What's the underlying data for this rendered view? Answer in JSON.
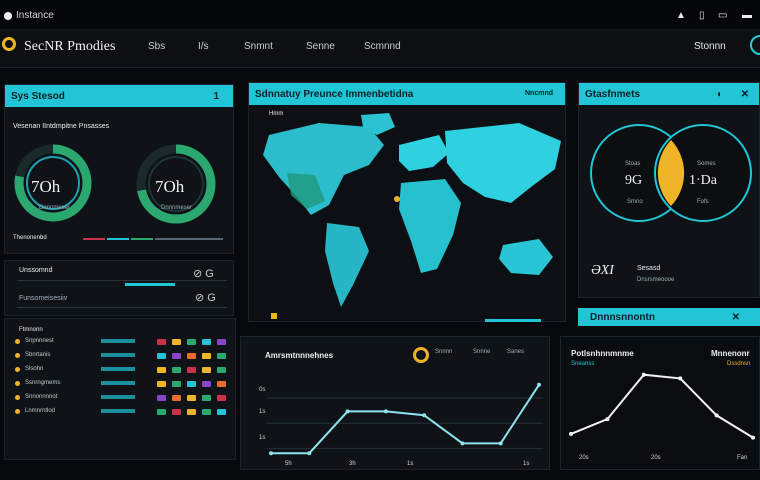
{
  "os": {
    "title": "Instance",
    "icons": [
      "person-icon",
      "window-icon",
      "monitor-icon",
      "close-icon"
    ]
  },
  "header": {
    "brand": "SecNR Pmodies",
    "nav": [
      "Sbs",
      "I/s",
      "Snmnt",
      "Senne",
      "Scmnnd"
    ],
    "user": "Stonnn"
  },
  "status_panel": {
    "title": "Sys Stesod",
    "marker": "1",
    "subtitle": "Vesenan IIntdmpitne Pnsasses",
    "gauge_left": {
      "value": "7Oh",
      "caption": "Dnnnmeser",
      "level": 0.78
    },
    "gauge_right": {
      "value": "7Oh",
      "caption": "Dnnnmeser",
      "level": 0.72
    },
    "footer": "Thenonenbd",
    "controls_title": "Unssomnd",
    "controls_sub": "Funsomeisesiiv"
  },
  "map_panel": {
    "title": "Sdnnatuy Preunce Immenbetidna",
    "badge": "Nncmnd",
    "legend": "Hmm"
  },
  "venn_panel": {
    "title": "Gtasfnmets",
    "left_value": "9G",
    "right_value": "1·Da",
    "left_top": "Stoas",
    "left_bottom": "Smno",
    "right_top": "Somes",
    "right_bottom": "Fofs",
    "metric_value": "ƏXI",
    "metric_label": "Sesasd",
    "metric_sub": "Dnsrsmeoooe"
  },
  "table_panel": {
    "title": "Ftmnonn",
    "rows": [
      "Snpnnnest",
      "Sbnrtanis",
      "Slsohn",
      "Ssnrngmems",
      "Snnonnnnot",
      "Lnmnrntlod"
    ]
  },
  "line_chart": {
    "title": "Amrsmtnnnehnes",
    "legend": [
      "Snnnn",
      "Snnne",
      "Sanes"
    ],
    "yticks": [
      "0s",
      "1s",
      "1s"
    ],
    "xticks": [
      "5h",
      "3h",
      "1s",
      "1s"
    ]
  },
  "side_header": {
    "title": "Dnnnsnnontn"
  },
  "line_chart2": {
    "title": "Potlsnhnnmnme",
    "subtitle": "Sneanss",
    "title2": "Mnnenonr",
    "subtitle2": "Dssdnsn",
    "xticks": [
      "20s",
      "20s",
      "Fan"
    ]
  },
  "chart_data": [
    {
      "type": "line",
      "title": "Amrsmtnnnehnes",
      "x": [
        0,
        1,
        2,
        3,
        4,
        5,
        6,
        7
      ],
      "y": [
        0.05,
        0.05,
        0.6,
        0.6,
        0.55,
        0.18,
        0.18,
        0.95
      ],
      "ylim": [
        0,
        1
      ]
    },
    {
      "type": "line",
      "title": "Potlsnhnnmnme",
      "x": [
        0,
        1,
        2,
        3,
        4,
        5
      ],
      "y": [
        0.15,
        0.35,
        0.95,
        0.9,
        0.4,
        0.1
      ],
      "ylim": [
        0,
        1
      ]
    }
  ],
  "colors": {
    "accent": "#22c5d6",
    "warn": "#f0b428",
    "green": "#2aa870",
    "red": "#c8324a"
  }
}
